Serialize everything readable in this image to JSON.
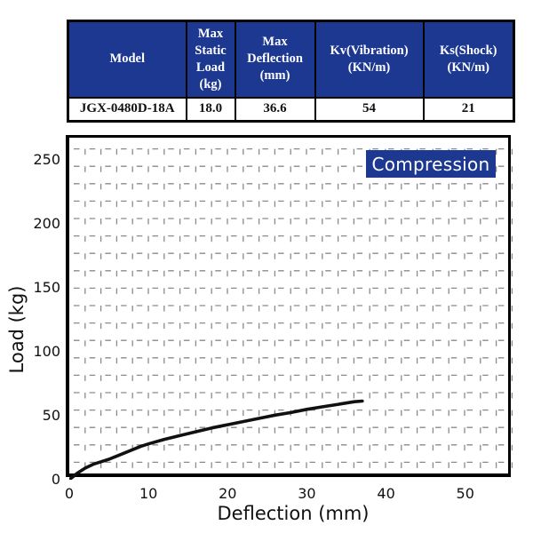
{
  "colors": {
    "navy": "#1d3890",
    "grid": "#8a8a8a",
    "curve": "#111111",
    "border": "#000000",
    "header_text": "#ffffff"
  },
  "table": {
    "headers": [
      "Model",
      "Max\nStatic\nLoad\n(kg)",
      "Max\nDeflection\n(mm)",
      "Kv(Vibration)\n(KN/m)",
      "Ks(Shock)\n(KN/m)"
    ],
    "row": [
      "JGX-0480D-18A",
      "18.0",
      "36.6",
      "54",
      "21"
    ]
  },
  "chart_data": {
    "type": "line",
    "title": "",
    "xlabel": "Deflection (mm)",
    "ylabel": "Load (kg)",
    "xlim": [
      0,
      56.2
    ],
    "ylim": [
      0,
      267.4
    ],
    "xticks": [
      0,
      10,
      20,
      30,
      40,
      50
    ],
    "yticks": [
      0,
      50,
      100,
      150,
      200,
      250
    ],
    "grid": "dashed",
    "legend_position": "none",
    "annotation": {
      "label": "Compression",
      "bg": "#1d3890",
      "color": "#ffffff"
    },
    "series": [
      {
        "name": "JGX-0480D-18A compression curve",
        "color": "#111111",
        "points": [
          [
            0,
            0
          ],
          [
            1,
            5
          ],
          [
            2,
            9
          ],
          [
            3,
            12
          ],
          [
            4,
            14
          ],
          [
            5,
            16
          ],
          [
            6,
            18.5
          ],
          [
            7,
            21
          ],
          [
            8,
            23.5
          ],
          [
            9,
            26
          ],
          [
            10,
            28
          ],
          [
            12,
            31.5
          ],
          [
            14,
            34.5
          ],
          [
            16,
            37.5
          ],
          [
            18,
            40.5
          ],
          [
            20,
            43
          ],
          [
            22,
            45.5
          ],
          [
            24,
            48
          ],
          [
            26,
            50.5
          ],
          [
            28,
            52.5
          ],
          [
            30,
            55
          ],
          [
            32,
            57
          ],
          [
            34,
            59
          ],
          [
            36,
            61
          ],
          [
            37,
            61.5
          ]
        ]
      }
    ]
  }
}
